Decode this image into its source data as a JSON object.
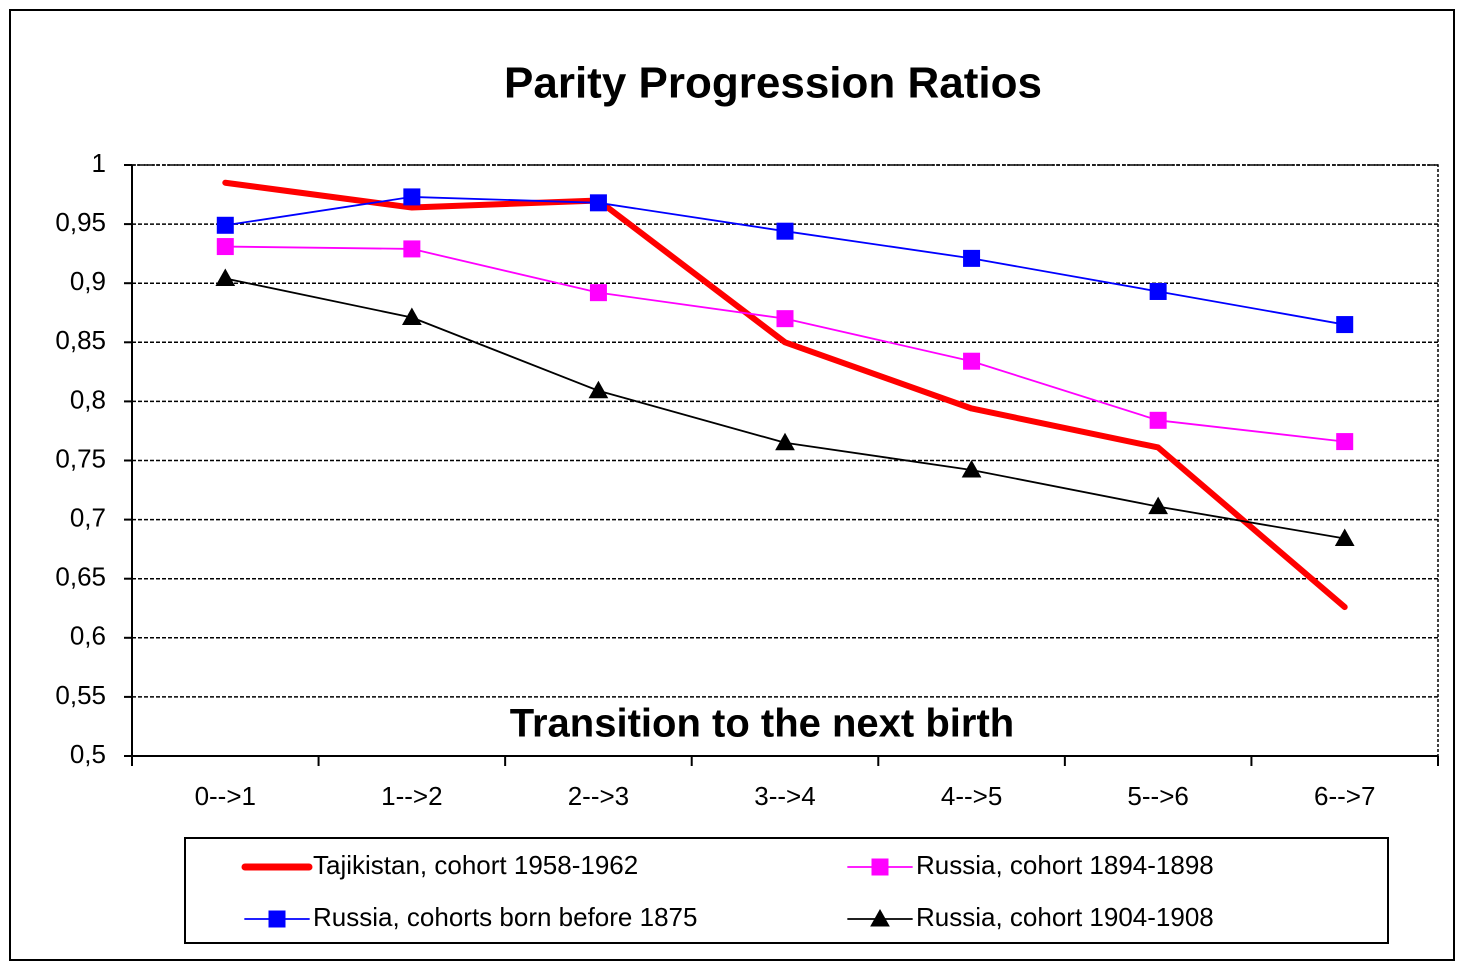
{
  "chart_data": {
    "type": "line",
    "title": "Parity Progression Ratios",
    "x_label": "Transition to the next birth",
    "categories": [
      "0-->1",
      "1-->2",
      "2-->3",
      "3-->4",
      "4-->5",
      "5-->6",
      "6-->7"
    ],
    "series": [
      {
        "name": "Tajikistan, cohort 1958-1962",
        "color": "#ff0000",
        "values": [
          0.985,
          0.964,
          0.97,
          0.85,
          0.794,
          0.761,
          0.626
        ]
      },
      {
        "name": "Russia, cohorts born before 1875",
        "color": "#0000ff",
        "marker": "square",
        "values": [
          0.949,
          0.973,
          0.968,
          0.944,
          0.921,
          0.893,
          0.865
        ]
      },
      {
        "name": "Russia, cohort 1894-1898",
        "color": "#ff00ff",
        "marker": "square",
        "values": [
          0.931,
          0.929,
          0.892,
          0.87,
          0.834,
          0.784,
          0.766
        ]
      },
      {
        "name": "Russia, cohort 1904-1908",
        "color": "#000000",
        "marker": "triangle",
        "values": [
          0.904,
          0.871,
          0.809,
          0.765,
          0.742,
          0.711,
          0.684
        ]
      }
    ],
    "ylim": [
      0.5,
      1
    ],
    "yticks": [
      {
        "value": 0.5,
        "label": "0,5"
      },
      {
        "value": 0.55,
        "label": "0,55"
      },
      {
        "value": 0.6,
        "label": "0,6"
      },
      {
        "value": 0.65,
        "label": "0,65"
      },
      {
        "value": 0.7,
        "label": "0,7"
      },
      {
        "value": 0.75,
        "label": "0,75"
      },
      {
        "value": 0.8,
        "label": "0,8"
      },
      {
        "value": 0.85,
        "label": "0,85"
      },
      {
        "value": 0.9,
        "label": "0,9"
      },
      {
        "value": 0.95,
        "label": "0,95"
      },
      1
    ],
    "grid": true
  }
}
